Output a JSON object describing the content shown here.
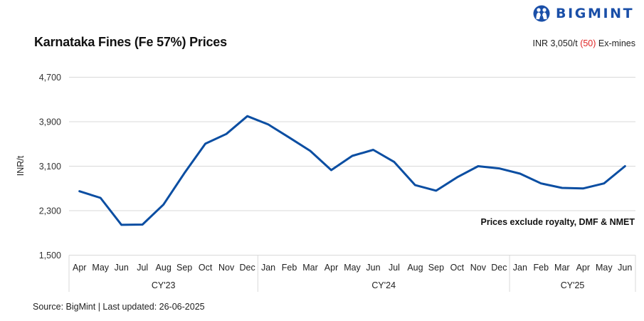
{
  "header": {
    "title": "Karnataka Fines (Fe 57%) Prices",
    "logo_text": "BIGMINT",
    "logo_icon": "bigmint-people-icon",
    "price_prefix": "INR 3,050/t ",
    "price_change": "(50)",
    "price_suffix": " Ex-mines",
    "change_color": "#e02424"
  },
  "footer": {
    "source": "Source: BigMint | Last updated: 26-06-2025"
  },
  "note": "Prices exclude royalty, DMF & NMET",
  "colors": {
    "line": "#0b4ea2",
    "grid": "#d9d9d9",
    "axis": "#d9d9d9",
    "logo": "#1a4fa8"
  },
  "chart_data": {
    "type": "line",
    "title": "Karnataka Fines (Fe 57%) Prices",
    "xlabel": "",
    "ylabel": "INR/t",
    "ylim": [
      1500,
      4700
    ],
    "yticks": [
      1500,
      2300,
      3100,
      3900,
      4700
    ],
    "ytick_labels": [
      "1,500",
      "2,300",
      "3,100",
      "3,900",
      "4,700"
    ],
    "grid": true,
    "legend": null,
    "annotation": "Prices exclude royalty, DMF & NMET",
    "groups": [
      {
        "label": "CY'23",
        "start": 0,
        "count": 9
      },
      {
        "label": "CY'24",
        "start": 9,
        "count": 12
      },
      {
        "label": "CY'25",
        "start": 21,
        "count": 6
      }
    ],
    "categories": [
      "Apr",
      "May",
      "Jun",
      "Jul",
      "Aug",
      "Sep",
      "Oct",
      "Nov",
      "Dec",
      "Jan",
      "Feb",
      "Mar",
      "Apr",
      "May",
      "Jun",
      "Jul",
      "Aug",
      "Sep",
      "Oct",
      "Nov",
      "Dec",
      "Jan",
      "Feb",
      "Mar",
      "Apr",
      "May",
      "Jun"
    ],
    "series": [
      {
        "name": "Karnataka Fines (Fe 57%)",
        "values": [
          2650,
          2530,
          2045,
          2050,
          2410,
          2975,
          3505,
          3680,
          4000,
          3850,
          3615,
          3375,
          3030,
          3285,
          3395,
          3175,
          2760,
          2660,
          2900,
          3100,
          3060,
          2965,
          2790,
          2710,
          2700,
          2790,
          3100
        ]
      }
    ]
  }
}
